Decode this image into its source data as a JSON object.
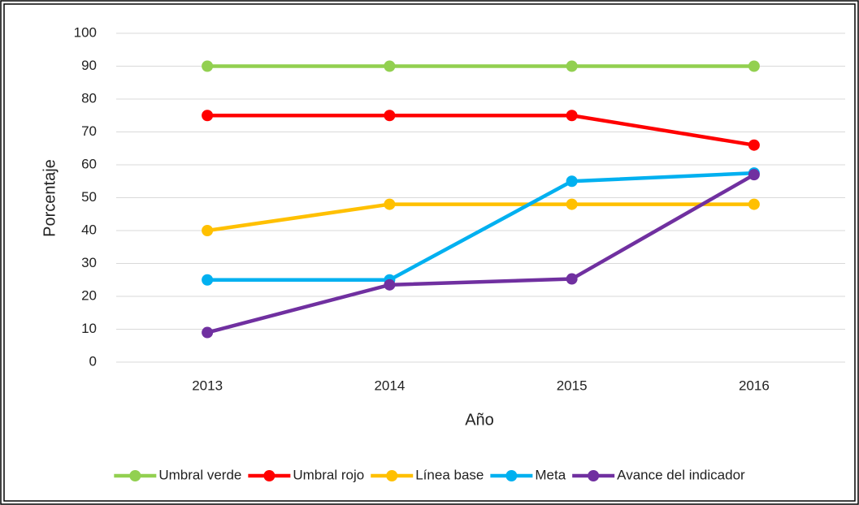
{
  "chart_data": {
    "type": "line",
    "categories": [
      "2013",
      "2014",
      "2015",
      "2016"
    ],
    "xlabel": "Año",
    "ylabel": "Porcentaje",
    "ylim": [
      0,
      100
    ],
    "yticks": [
      0,
      10,
      20,
      30,
      40,
      50,
      60,
      70,
      80,
      90,
      100
    ],
    "grid": true,
    "legend": "bottom",
    "series": [
      {
        "name": "Umbral verde",
        "color": "#92d050",
        "values": [
          90,
          90,
          90,
          90
        ]
      },
      {
        "name": "Umbral rojo",
        "color": "#ff0000",
        "values": [
          75,
          75,
          75,
          66
        ]
      },
      {
        "name": "Línea base",
        "color": "#ffc000",
        "values": [
          40,
          48,
          48,
          48
        ]
      },
      {
        "name": "Meta",
        "color": "#00b0f0",
        "values": [
          25,
          25,
          55,
          57.5
        ]
      },
      {
        "name": "Avance del indicador",
        "color": "#7030a0",
        "values": [
          9,
          23.5,
          25.3,
          57
        ]
      }
    ]
  }
}
